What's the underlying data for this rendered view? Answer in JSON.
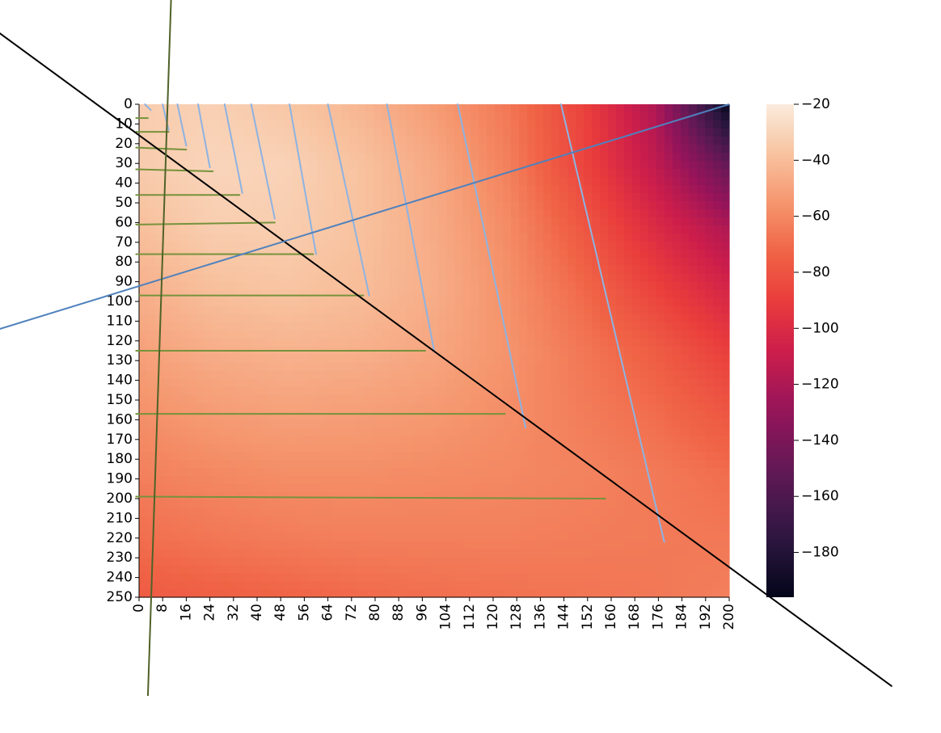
{
  "chart_data": {
    "type": "heatmap",
    "title": "",
    "xlabel": "",
    "ylabel": "",
    "xlim": [
      0,
      200
    ],
    "ylim": [
      250,
      0
    ],
    "x_ticks": [
      0,
      8,
      16,
      24,
      32,
      40,
      48,
      56,
      64,
      72,
      80,
      88,
      96,
      104,
      112,
      120,
      128,
      136,
      144,
      152,
      160,
      168,
      176,
      184,
      192,
      200
    ],
    "y_ticks": [
      0,
      10,
      20,
      30,
      40,
      50,
      60,
      70,
      80,
      90,
      100,
      110,
      120,
      130,
      140,
      150,
      160,
      170,
      180,
      190,
      200,
      210,
      220,
      230,
      240,
      250
    ],
    "colorbar": {
      "range": [
        -196,
        -20
      ],
      "ticks": [
        -20,
        -40,
        -60,
        -80,
        -100,
        -120,
        -140,
        -160,
        -180
      ],
      "tick_labels": [
        "−20",
        "−40",
        "−60",
        "−80",
        "−100",
        "−120",
        "−140",
        "−160",
        "−180"
      ],
      "colormap": "rocket"
    },
    "field_samples": {
      "x": [
        0,
        25,
        50,
        75,
        100,
        125,
        150,
        175,
        200
      ],
      "y": [
        0,
        31.25,
        62.5,
        93.75,
        125,
        156.25,
        187.5,
        218.75,
        250
      ],
      "values": [
        [
          -33,
          -32,
          -36,
          -43,
          -53,
          -66,
          -87,
          -120,
          -195
        ],
        [
          -34,
          -30,
          -31,
          -38,
          -48,
          -63,
          -86,
          -113,
          -150
        ],
        [
          -39,
          -33,
          -33,
          -38,
          -47,
          -59,
          -78,
          -100,
          -120
        ],
        [
          -45,
          -39,
          -37,
          -40,
          -46,
          -57,
          -71,
          -88,
          -104
        ],
        [
          -51,
          -46,
          -44,
          -45,
          -49,
          -56,
          -66,
          -76,
          -90
        ],
        [
          -57,
          -53,
          -51,
          -52,
          -54,
          -58,
          -64,
          -70,
          -79
        ],
        [
          -63,
          -60,
          -58,
          -58,
          -59,
          -60,
          -62,
          -65,
          -70
        ],
        [
          -69,
          -66,
          -64,
          -63,
          -63,
          -63,
          -64,
          -65,
          -66
        ],
        [
          -77,
          -75,
          -73,
          -71,
          -69,
          -68,
          -67,
          -66,
          -63
        ]
      ]
    },
    "overlays": {
      "diagonal_line": {
        "color": "#000000",
        "from": [
          -60,
          -50
        ],
        "to": [
          255,
          295
        ]
      },
      "blue_axis_arrow": {
        "color": "#4f81bd",
        "from": [
          200,
          0
        ],
        "to": [
          -82,
          130
        ]
      },
      "green_axis_arrow": {
        "color": "#4f6228",
        "from": [
          3,
          300
        ],
        "to": [
          11,
          -60
        ]
      },
      "blue_lines": [
        {
          "color": "#8db3e2",
          "from": [
            2,
            0
          ],
          "to": [
            4,
            3
          ]
        },
        {
          "color": "#8db3e2",
          "from": [
            8,
            0
          ],
          "to": [
            10,
            13
          ]
        },
        {
          "color": "#8db3e2",
          "from": [
            13,
            0
          ],
          "to": [
            16,
            21
          ]
        },
        {
          "color": "#8db3e2",
          "from": [
            20,
            0
          ],
          "to": [
            24,
            32
          ]
        },
        {
          "color": "#8db3e2",
          "from": [
            29,
            0
          ],
          "to": [
            35,
            45
          ]
        },
        {
          "color": "#8db3e2",
          "from": [
            38,
            0
          ],
          "to": [
            46,
            58
          ]
        },
        {
          "color": "#8db3e2",
          "from": [
            51,
            0
          ],
          "to": [
            60,
            76
          ]
        },
        {
          "color": "#8db3e2",
          "from": [
            64,
            0
          ],
          "to": [
            78,
            97
          ]
        },
        {
          "color": "#8db3e2",
          "from": [
            84,
            0
          ],
          "to": [
            100,
            125
          ]
        },
        {
          "color": "#8db3e2",
          "from": [
            108,
            0
          ],
          "to": [
            131,
            164
          ]
        },
        {
          "color": "#8db3e2",
          "from": [
            143,
            0
          ],
          "to": [
            178,
            222
          ]
        }
      ],
      "green_lines": [
        {
          "color": "#76923c",
          "from": [
            -1,
            7
          ],
          "to": [
            3,
            7
          ]
        },
        {
          "color": "#76923c",
          "from": [
            -1,
            14
          ],
          "to": [
            10,
            14
          ]
        },
        {
          "color": "#76923c",
          "from": [
            -1,
            22
          ],
          "to": [
            16,
            23
          ]
        },
        {
          "color": "#76923c",
          "from": [
            -1,
            33
          ],
          "to": [
            25,
            34
          ]
        },
        {
          "color": "#76923c",
          "from": [
            -1,
            46
          ],
          "to": [
            34,
            46
          ]
        },
        {
          "color": "#76923c",
          "from": [
            -1,
            61
          ],
          "to": [
            46,
            60
          ]
        },
        {
          "color": "#76923c",
          "from": [
            -1,
            76
          ],
          "to": [
            59,
            76
          ]
        },
        {
          "color": "#76923c",
          "from": [
            0,
            97
          ],
          "to": [
            76,
            97
          ]
        },
        {
          "color": "#76923c",
          "from": [
            -1,
            125
          ],
          "to": [
            97,
            125
          ]
        },
        {
          "color": "#76923c",
          "from": [
            -1,
            157
          ],
          "to": [
            124,
            157
          ]
        },
        {
          "color": "#76923c",
          "from": [
            -1,
            199
          ],
          "to": [
            158,
            200
          ]
        }
      ]
    }
  }
}
